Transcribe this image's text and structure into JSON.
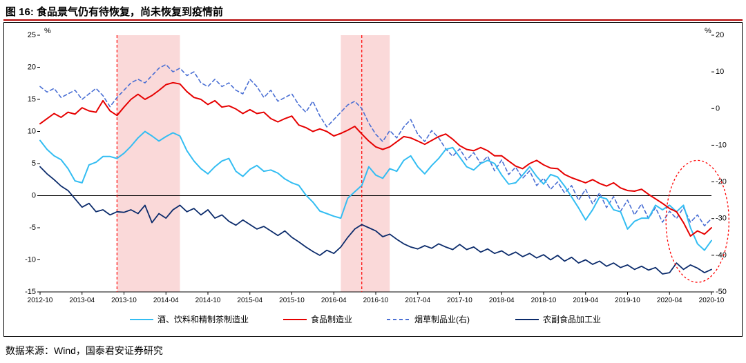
{
  "title": "图 16:  食品景气仍有待恢复，尚未恢复到疫情前",
  "source": "数据来源：Wind，国泰君安证券研究",
  "chart": {
    "type": "line",
    "background_color": "#ffffff",
    "title_fontsize": 15,
    "axis_fontsize": 11,
    "tick_fontsize": 10,
    "font_family": "SimSun",
    "left_unit": "%",
    "right_unit": "%",
    "y_left": {
      "min": -15,
      "max": 25,
      "ticks": [
        -15,
        -10,
        -5,
        0,
        5,
        10,
        15,
        20,
        25
      ]
    },
    "y_right": {
      "min": -50,
      "max": 20,
      "ticks": [
        -50,
        -40,
        -30,
        -20,
        -10,
        0,
        10,
        20
      ]
    },
    "x": {
      "labels": [
        "2012-10",
        "2013-04",
        "2013-10",
        "2014-04",
        "2014-10",
        "2015-04",
        "2015-10",
        "2016-04",
        "2016-10",
        "2017-04",
        "2017-10",
        "2018-04",
        "2018-10",
        "2019-04",
        "2019-10",
        "2020-04",
        "2020-10"
      ],
      "n_points": 97
    },
    "zero_line_color": "#000000",
    "highlight_bands": [
      {
        "start_index": 11,
        "end_index": 20,
        "color": "#f9d0d0",
        "opacity": 0.8
      },
      {
        "start_index": 43,
        "end_index": 50,
        "color": "#f9d0d0",
        "opacity": 0.8
      }
    ],
    "vertical_dashed": [
      {
        "index": 11,
        "color": "#ff0000",
        "dash": "4,3",
        "stroke_width": 1.2
      },
      {
        "index": 46,
        "color": "#ff0000",
        "dash": "4,3",
        "stroke_width": 1.2
      }
    ],
    "ellipse": {
      "cx_index": 94,
      "cy_left_value": -4,
      "rx_index_span": 4.5,
      "ry_left_value_span": 9.5,
      "color": "#ff0000",
      "dash": "3,3",
      "stroke_width": 1.3
    },
    "legend": {
      "position": "bottom",
      "items": [
        {
          "key": "series1",
          "label": "酒、饮料和精制茶制造业"
        },
        {
          "key": "series2",
          "label": "食品制造业"
        },
        {
          "key": "series3",
          "label": "烟草制品业(右)"
        },
        {
          "key": "series4",
          "label": "农副食品加工业"
        }
      ]
    },
    "series": {
      "series1": {
        "name": "酒、饮料和精制茶制造业",
        "axis": "left",
        "color": "#33bdf2",
        "stroke_width": 2.0,
        "dash": null,
        "values": [
          8.6,
          7.2,
          6.2,
          5.6,
          4.2,
          2.3,
          2.0,
          4.8,
          5.2,
          6.1,
          6.1,
          5.8,
          6.6,
          7.7,
          9.0,
          10.0,
          9.3,
          8.5,
          9.2,
          9.8,
          9.3,
          7.0,
          5.4,
          4.2,
          3.4,
          4.5,
          5.4,
          5.8,
          3.8,
          3.0,
          4.1,
          4.7,
          3.8,
          4.0,
          3.5,
          2.6,
          2.0,
          1.6,
          0.1,
          -1.0,
          -2.4,
          -2.8,
          -3.2,
          -3.5,
          -0.4,
          0.6,
          1.6,
          4.5,
          3.2,
          2.7,
          4.2,
          3.8,
          5.5,
          6.2,
          4.5,
          3.4,
          4.7,
          5.8,
          7.2,
          7.5,
          6.0,
          4.5,
          4.0,
          5.0,
          5.5,
          5.0,
          3.2,
          1.8,
          2.0,
          3.2,
          4.5,
          3.0,
          1.8,
          3.3,
          2.9,
          1.5,
          -0.2,
          -1.9,
          -3.8,
          -2.2,
          -0.2,
          -0.5,
          -2.2,
          -2.5,
          -5.2,
          -4.0,
          -3.5,
          -3.5,
          -1.5,
          -2.2,
          -1.5,
          -2.5,
          -1.5,
          -5.0,
          -7.5,
          -8.5,
          -7.0
        ]
      },
      "series2": {
        "name": "食品制造业",
        "axis": "left",
        "color": "#e60000",
        "stroke_width": 2.0,
        "dash": null,
        "values": [
          11.2,
          12.0,
          12.8,
          12.2,
          13.0,
          12.7,
          13.7,
          13.2,
          13.0,
          14.8,
          13.2,
          12.5,
          13.8,
          15.0,
          15.8,
          15.0,
          15.6,
          16.4,
          17.3,
          17.6,
          17.4,
          16.2,
          15.3,
          15.0,
          14.2,
          14.8,
          13.8,
          14.0,
          13.5,
          12.8,
          13.4,
          12.8,
          13.0,
          12.0,
          11.5,
          12.0,
          12.4,
          11.0,
          10.6,
          10.0,
          10.4,
          10.0,
          9.3,
          9.7,
          10.2,
          10.8,
          9.6,
          8.5,
          7.6,
          7.2,
          7.6,
          8.4,
          9.2,
          9.0,
          8.5,
          8.0,
          8.6,
          9.2,
          9.6,
          8.8,
          7.8,
          7.2,
          7.0,
          7.5,
          7.0,
          6.2,
          6.2,
          5.4,
          4.6,
          4.2,
          5.0,
          5.5,
          4.8,
          4.3,
          4.2,
          3.3,
          2.8,
          2.4,
          2.0,
          2.5,
          1.9,
          1.5,
          2.0,
          1.2,
          0.8,
          0.7,
          1.0,
          0.2,
          -0.5,
          -1.2,
          -2.0,
          -2.5,
          -4.2,
          -6.3,
          -5.5,
          -6.0,
          -5.0
        ]
      },
      "series3": {
        "name": "烟草制品业(右)",
        "axis": "right",
        "color": "#4a6fd4",
        "stroke_width": 1.6,
        "dash": "5,4",
        "values": [
          6.0,
          4.5,
          5.5,
          3.0,
          4.0,
          5.0,
          2.5,
          4.0,
          5.5,
          3.5,
          0.5,
          3.0,
          5.0,
          7.0,
          8.0,
          7.0,
          9.0,
          11.0,
          12.0,
          10.0,
          11.0,
          9.0,
          10.0,
          7.0,
          6.0,
          8.0,
          6.0,
          7.0,
          5.0,
          4.0,
          8.0,
          6.0,
          3.0,
          5.0,
          2.0,
          3.0,
          4.0,
          1.0,
          -1.0,
          2.0,
          -2.0,
          -5.0,
          -3.0,
          -1.0,
          1.0,
          2.0,
          0.0,
          -4.0,
          -7.0,
          -9.0,
          -6.0,
          -8.0,
          -5.0,
          -3.0,
          -7.0,
          -9.0,
          -6.0,
          -8.0,
          -11.0,
          -13.0,
          -11.0,
          -14.0,
          -12.0,
          -15.0,
          -13.0,
          -17.0,
          -14.0,
          -18.0,
          -16.0,
          -19.0,
          -17.0,
          -21.0,
          -19.0,
          -22.0,
          -20.0,
          -23.0,
          -21.0,
          -25.0,
          -22.0,
          -26.0,
          -23.0,
          -27.0,
          -24.0,
          -28.0,
          -25.0,
          -29.0,
          -26.0,
          -30.0,
          -27.0,
          -31.0,
          -28.0,
          -30.0,
          -27.0,
          -31.0,
          -29.0,
          -32.0,
          -30.0
        ]
      },
      "series4": {
        "name": "农副食品加工业",
        "axis": "left",
        "color": "#0b2b6b",
        "stroke_width": 1.8,
        "dash": null,
        "values": [
          4.5,
          3.4,
          2.5,
          1.5,
          0.8,
          -0.5,
          -1.8,
          -1.2,
          -2.5,
          -2.2,
          -3.0,
          -2.5,
          -2.6,
          -2.2,
          -2.8,
          -1.5,
          -4.2,
          -2.8,
          -3.5,
          -2.2,
          -1.5,
          -2.5,
          -2.0,
          -3.0,
          -2.2,
          -3.5,
          -3.0,
          -4.0,
          -4.6,
          -3.8,
          -4.5,
          -5.2,
          -4.8,
          -5.5,
          -6.2,
          -5.5,
          -6.5,
          -7.2,
          -8.0,
          -8.7,
          -9.3,
          -8.5,
          -9.0,
          -8.0,
          -6.5,
          -5.2,
          -4.5,
          -5.0,
          -5.5,
          -6.4,
          -6.0,
          -6.8,
          -7.5,
          -8.0,
          -8.3,
          -7.8,
          -8.2,
          -7.5,
          -8.0,
          -8.4,
          -7.6,
          -8.4,
          -8.0,
          -8.8,
          -8.3,
          -9.0,
          -8.6,
          -9.3,
          -8.8,
          -9.5,
          -9.0,
          -9.7,
          -9.2,
          -10.0,
          -9.3,
          -10.2,
          -9.6,
          -10.5,
          -10.0,
          -10.7,
          -10.2,
          -11.0,
          -10.5,
          -11.2,
          -10.8,
          -11.5,
          -11.0,
          -11.6,
          -11.2,
          -12.2,
          -12.0,
          -10.5,
          -11.5,
          -10.8,
          -11.3,
          -12.0,
          -11.5
        ]
      }
    }
  }
}
